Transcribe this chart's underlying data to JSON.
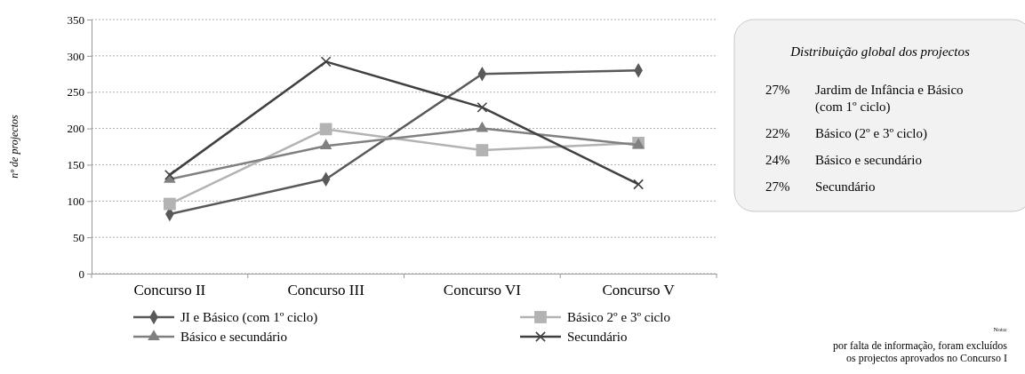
{
  "chart_data": [
    {
      "type": "line",
      "ylabel": "nº de projectos",
      "categories": [
        "Concurso II",
        "Concurso III",
        "Concurso VI",
        "Concurso V"
      ],
      "ylim": [
        0,
        350
      ],
      "yticks": [
        0,
        50,
        100,
        150,
        200,
        250,
        300,
        350
      ],
      "grid": "y",
      "legend": "bottom",
      "line_style": "solid",
      "series": [
        {
          "name": "JI e Básico (com 1º ciclo)",
          "color": "#595959",
          "marker": "diamond",
          "values": [
            82,
            130,
            275,
            280
          ]
        },
        {
          "name": "Básico 2º e 3º ciclo",
          "color": "#b3b3b3",
          "marker": "square",
          "values": [
            96,
            199,
            170,
            180
          ]
        },
        {
          "name": "Básico e secundário",
          "color": "#808080",
          "marker": "triangle",
          "values": [
            130,
            176,
            200,
            177
          ]
        },
        {
          "name": "Secundário",
          "color": "#404040",
          "marker": "cross",
          "values": [
            136,
            292,
            229,
            123
          ]
        }
      ],
      "annotations": [
        "Nota:",
        "por falta de informação, foram excluídos os projectos aprovados no Concurso I"
      ]
    },
    {
      "type": "other",
      "title": "Distribuição global dos projectos",
      "categories": [
        "Jardim de Infância e Básico (com 1º ciclo)",
        "Básico (2º e 3º ciclo)",
        "Básico e secundário",
        "Secundário"
      ],
      "value_labels": [
        "27%",
        "22%",
        "24%",
        "27%"
      ]
    }
  ]
}
